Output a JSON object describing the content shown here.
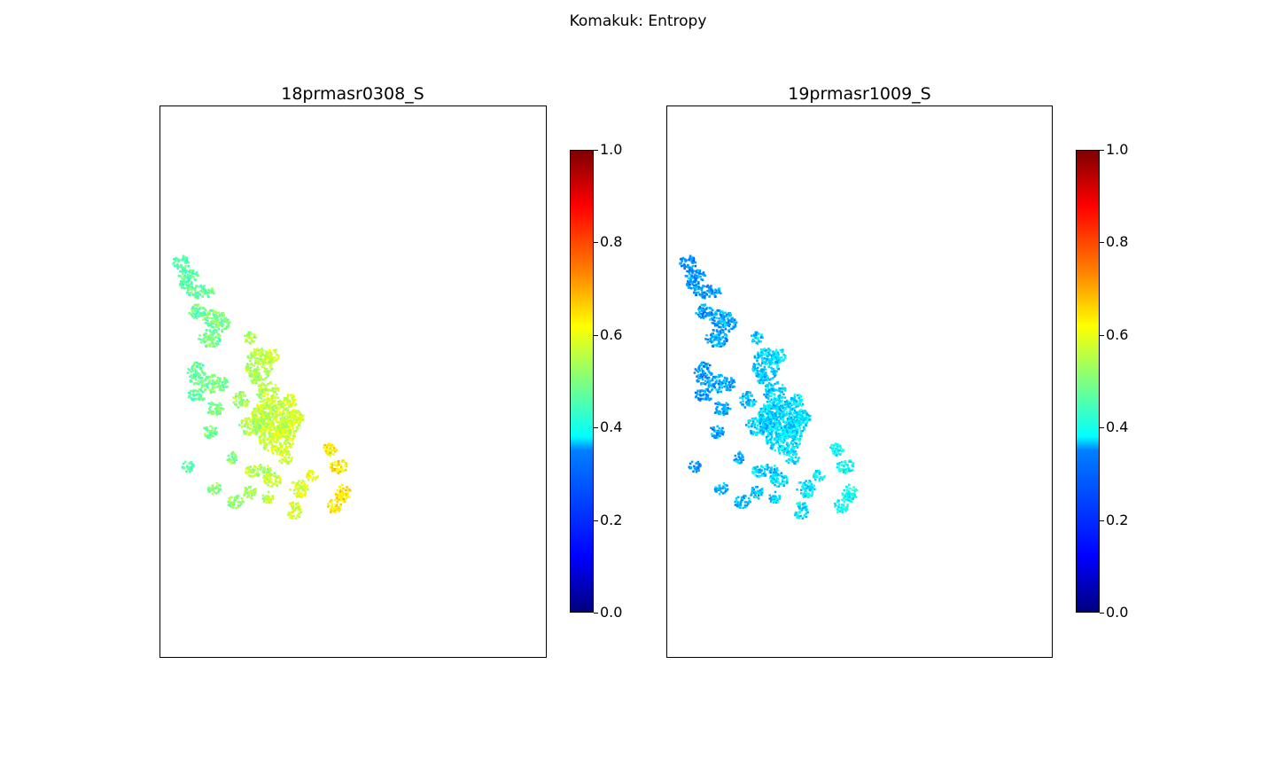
{
  "figure": {
    "suptitle": "Komakuk: Entropy"
  },
  "chart_data": [
    {
      "type": "heatmap",
      "title": "18prmasr0308_S",
      "xlabel": "",
      "ylabel": "",
      "colormap": "jet",
      "colorbar": {
        "range": [
          0.0,
          1.0
        ],
        "ticks": [
          "0.0",
          "0.2",
          "0.4",
          "0.6",
          "0.8",
          "1.0"
        ]
      },
      "grid": false,
      "dominant_value_range": [
        0.35,
        0.75
      ],
      "typical_value": 0.5
    },
    {
      "type": "heatmap",
      "title": "19prmasr1009_S",
      "xlabel": "",
      "ylabel": "",
      "colormap": "jet",
      "colorbar": {
        "range": [
          0.0,
          1.0
        ],
        "ticks": [
          "0.0",
          "0.2",
          "0.4",
          "0.6",
          "0.8",
          "1.0"
        ]
      },
      "grid": false,
      "dominant_value_range": [
        0.2,
        0.45
      ],
      "typical_value": 0.3
    }
  ]
}
